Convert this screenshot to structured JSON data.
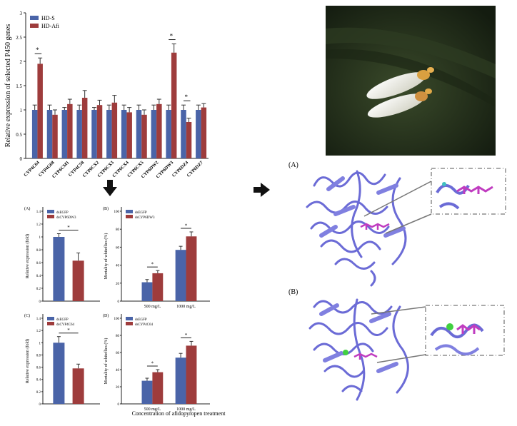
{
  "colors": {
    "s": "#4a64a8",
    "afi": "#9e3c3c",
    "protein": "#6b6bd6",
    "ligand": "#c03cc0",
    "photo_bg": "#23301a"
  },
  "chart_data": [
    {
      "type": "bar",
      "ylabel": "Relative expression of selected P450 genes",
      "legend": [
        "HD-S",
        "HD-Afi"
      ],
      "legend_position": "top-left",
      "ylim": [
        0,
        3
      ],
      "yticks": [
        0,
        0.5,
        1,
        1.5,
        2,
        2.5,
        3
      ],
      "categories": [
        "CYP4C64",
        "CYP4G68",
        "CYP6CM1",
        "CYP4C58",
        "CYP6CX2",
        "CYP6CX3",
        "CYP6CX4",
        "CYP6CX5",
        "CYP6DW2",
        "CYP6DW3",
        "CYP6DZ4",
        "CYP6DZ7"
      ],
      "series": [
        {
          "name": "HD-S",
          "values": [
            1.0,
            1.0,
            1.0,
            1.0,
            1.0,
            1.0,
            1.0,
            1.0,
            1.0,
            1.0,
            1.0,
            1.0
          ],
          "errors": [
            0.1,
            0.1,
            0.05,
            0.1,
            0.05,
            0.1,
            0.1,
            0.1,
            0.1,
            0.1,
            0.1,
            0.1
          ]
        },
        {
          "name": "HD-Afi",
          "values": [
            1.95,
            0.9,
            1.12,
            1.25,
            1.1,
            1.15,
            0.95,
            0.9,
            1.12,
            2.18,
            0.75,
            1.05
          ],
          "errors": [
            0.12,
            0.1,
            0.1,
            0.15,
            0.1,
            0.15,
            0.1,
            0.1,
            0.1,
            0.18,
            0.08,
            0.08
          ]
        }
      ],
      "significance": [
        0,
        9,
        10
      ],
      "star": "*"
    },
    {
      "type": "bar",
      "panel": "(A)",
      "ylabel": "Relative expression (fold)",
      "legend": [
        "dsEGFP",
        "dsCYP6DW3"
      ],
      "ylim": [
        0,
        1.4
      ],
      "yticks": [
        0,
        0.2,
        0.4,
        0.6,
        0.8,
        1.0,
        1.2,
        1.4
      ],
      "series": [
        {
          "name": "dsEGFP",
          "values": [
            1.0
          ],
          "errors": [
            0.05
          ]
        },
        {
          "name": "dsCYP6DW3",
          "values": [
            0.63
          ],
          "errors": [
            0.12
          ]
        }
      ],
      "star": "*"
    },
    {
      "type": "bar",
      "panel": "(B)",
      "ylabel": "Mortality of whiteflies (%)",
      "legend": [
        "dsEGFP",
        "dsCYP6DW3"
      ],
      "categories": [
        "500 mg/L",
        "1000 mg/L"
      ],
      "ylim": [
        0,
        100
      ],
      "yticks": [
        0,
        20,
        40,
        60,
        80,
        100
      ],
      "series": [
        {
          "name": "dsEGFP",
          "values": [
            21,
            57
          ],
          "errors": [
            3,
            4
          ]
        },
        {
          "name": "dsCYP6DW3",
          "values": [
            31,
            72
          ],
          "errors": [
            3,
            5
          ]
        }
      ],
      "star": "*"
    },
    {
      "type": "bar",
      "panel": "(C)",
      "ylabel": "Relative expression (fold)",
      "legend": [
        "dsEGFP",
        "dsCYP4C64"
      ],
      "ylim": [
        0,
        1.4
      ],
      "yticks": [
        0,
        0.2,
        0.4,
        0.6,
        0.8,
        1.0,
        1.2,
        1.4
      ],
      "series": [
        {
          "name": "dsEGFP",
          "values": [
            1.0
          ],
          "errors": [
            0.1
          ]
        },
        {
          "name": "dsCYP4C64",
          "values": [
            0.58
          ],
          "errors": [
            0.07
          ]
        }
      ],
      "star": "*"
    },
    {
      "type": "bar",
      "panel": "(D)",
      "ylabel": "Mortality of whiteflies (%)",
      "legend": [
        "dsEGFP",
        "dsCYP4C64"
      ],
      "categories": [
        "500 mg/L",
        "1000 mg/L"
      ],
      "ylim": [
        0,
        100
      ],
      "yticks": [
        0,
        20,
        40,
        60,
        80,
        100
      ],
      "series": [
        {
          "name": "dsEGFP",
          "values": [
            27,
            54
          ],
          "errors": [
            3,
            5
          ]
        },
        {
          "name": "dsCYP4C64",
          "values": [
            37,
            68
          ],
          "errors": [
            3,
            5
          ]
        }
      ],
      "star": "*"
    }
  ],
  "bottom_caption": "Concentration of afidopyropen treatment",
  "structure_labels": [
    "(A)",
    "(B)"
  ]
}
